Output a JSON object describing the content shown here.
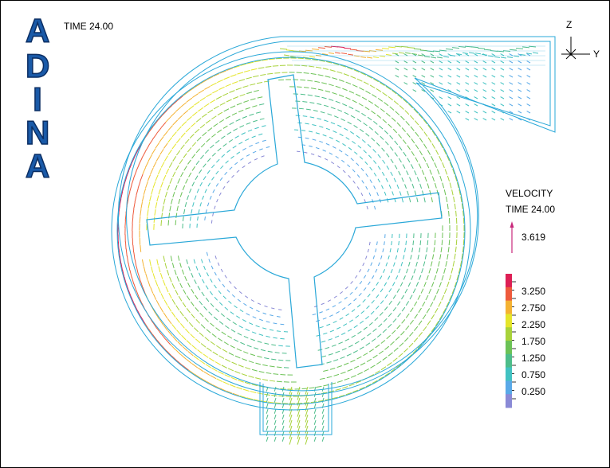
{
  "header": {
    "logo_letters": [
      "A",
      "D",
      "I",
      "N",
      "A"
    ],
    "time_label": "TIME 24.00"
  },
  "axes_triad": {
    "vertical_axis": "Z",
    "horizontal_axis": "Y"
  },
  "legend": {
    "title": "VELOCITY",
    "time_label": "TIME 24.00",
    "reference_arrow_value": "3.619",
    "ticks": [
      "3.250",
      "2.750",
      "2.250",
      "1.750",
      "1.250",
      "0.750",
      "0.250"
    ],
    "colorscale": [
      "#8a8ad6",
      "#59a9e8",
      "#41c2c2",
      "#4dbd8a",
      "#6cc256",
      "#a8d23a",
      "#e5e52a",
      "#f4b232",
      "#ee5a3c",
      "#dd1f55"
    ],
    "reference_arrow_color": "#c8287a"
  },
  "colors": {
    "boundary": "#2aa8d8",
    "logo_fill": "#1a5aa8"
  }
}
